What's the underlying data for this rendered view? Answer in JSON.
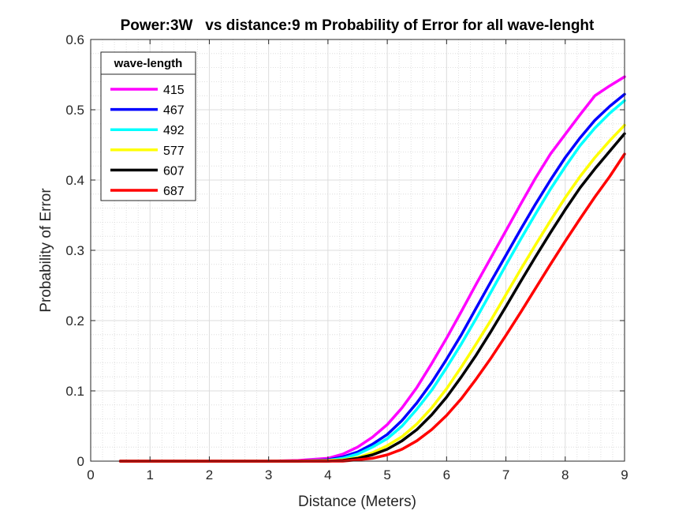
{
  "chart_data": {
    "type": "line",
    "title": "Power:3W   vs distance:9 m Probability of Error for all wave-lenght",
    "xlabel": "Distance (Meters)",
    "ylabel": "Probability of Error",
    "xlim": [
      0,
      9
    ],
    "ylim": [
      0,
      0.6
    ],
    "xticks": [
      "0",
      "1",
      "2",
      "3",
      "4",
      "5",
      "6",
      "7",
      "8",
      "9"
    ],
    "yticks": [
      "0",
      "0.1",
      "0.2",
      "0.3",
      "0.4",
      "0.5",
      "0.6"
    ],
    "grid": true,
    "minor_grid": true,
    "legend": {
      "title": "wave-length",
      "location": "top-left"
    },
    "x": [
      0.5,
      1,
      1.5,
      2,
      2.5,
      3,
      3.5,
      4,
      4.25,
      4.5,
      4.75,
      5,
      5.25,
      5.5,
      5.75,
      6,
      6.25,
      6.5,
      6.75,
      7,
      7.25,
      7.5,
      7.75,
      8,
      8.25,
      8.5,
      8.75,
      9
    ],
    "series": [
      {
        "name": "415",
        "color": "#ff00ff",
        "values": [
          0,
          0,
          0,
          0,
          0,
          0,
          0.001,
          0.004,
          0.01,
          0.02,
          0.034,
          0.052,
          0.076,
          0.105,
          0.139,
          0.175,
          0.213,
          0.252,
          0.29,
          0.328,
          0.366,
          0.403,
          0.437,
          0.465,
          0.493,
          0.52,
          0.534,
          0.547
        ]
      },
      {
        "name": "467",
        "color": "#0000ff",
        "values": [
          0,
          0,
          0,
          0,
          0,
          0,
          0,
          0.002,
          0.006,
          0.013,
          0.024,
          0.038,
          0.058,
          0.083,
          0.112,
          0.145,
          0.18,
          0.218,
          0.256,
          0.293,
          0.33,
          0.366,
          0.4,
          0.432,
          0.46,
          0.485,
          0.505,
          0.522
        ]
      },
      {
        "name": "492",
        "color": "#00ffff",
        "values": [
          0,
          0,
          0,
          0,
          0,
          0,
          0,
          0.001,
          0.004,
          0.01,
          0.02,
          0.032,
          0.05,
          0.074,
          0.101,
          0.133,
          0.167,
          0.203,
          0.241,
          0.279,
          0.316,
          0.352,
          0.387,
          0.419,
          0.449,
          0.474,
          0.495,
          0.513
        ]
      },
      {
        "name": "577",
        "color": "#ffff00",
        "values": [
          0,
          0,
          0,
          0,
          0,
          0,
          0,
          0.001,
          0.002,
          0.005,
          0.012,
          0.022,
          0.035,
          0.053,
          0.076,
          0.103,
          0.134,
          0.167,
          0.201,
          0.237,
          0.273,
          0.308,
          0.342,
          0.375,
          0.405,
          0.432,
          0.456,
          0.478
        ]
      },
      {
        "name": "607",
        "color": "#000000",
        "values": [
          0,
          0,
          0,
          0,
          0,
          0,
          0,
          0,
          0.001,
          0.004,
          0.009,
          0.017,
          0.029,
          0.045,
          0.066,
          0.091,
          0.12,
          0.151,
          0.185,
          0.22,
          0.256,
          0.291,
          0.325,
          0.358,
          0.389,
          0.416,
          0.441,
          0.466
        ]
      },
      {
        "name": "687",
        "color": "#ff0000",
        "values": [
          0,
          0,
          0,
          0,
          0,
          0,
          0,
          0,
          0,
          0.002,
          0.004,
          0.009,
          0.017,
          0.029,
          0.045,
          0.065,
          0.089,
          0.117,
          0.147,
          0.179,
          0.212,
          0.246,
          0.28,
          0.313,
          0.345,
          0.376,
          0.405,
          0.437
        ]
      }
    ]
  }
}
